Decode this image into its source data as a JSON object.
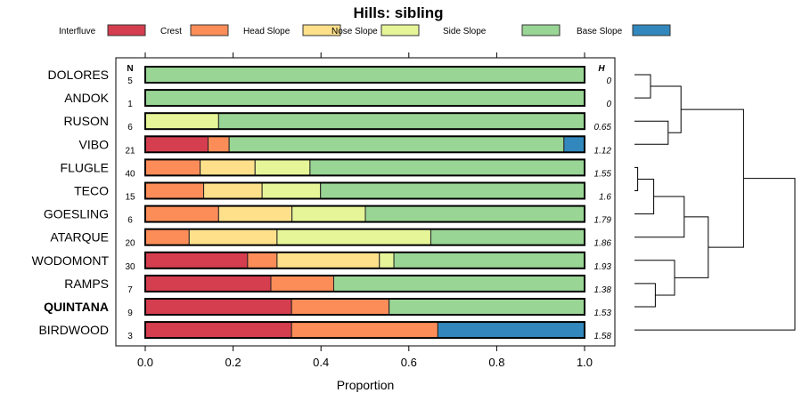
{
  "chart_data": {
    "type": "bar",
    "stacked": true,
    "orientation": "horizontal",
    "title": "Hills: sibling",
    "xlabel": "Proportion",
    "xlim": [
      0,
      1
    ],
    "xticks": [
      "0.0",
      "0.2",
      "0.4",
      "0.6",
      "0.8",
      "1.0"
    ],
    "xtick_values": [
      0,
      0.2,
      0.4,
      0.6,
      0.8,
      1.0
    ],
    "n_header": "N",
    "h_header": "H",
    "legend_position": "top",
    "series": [
      {
        "name": "Interfluve",
        "color": "#D53E4F"
      },
      {
        "name": "Crest",
        "color": "#FC8D59"
      },
      {
        "name": "Head Slope",
        "color": "#FEE08B"
      },
      {
        "name": "Nose Slope",
        "color": "#E6F598"
      },
      {
        "name": "Side Slope",
        "color": "#99D594"
      },
      {
        "name": "Base Slope",
        "color": "#3288BD"
      }
    ],
    "categories": [
      "DOLORES",
      "ANDOK",
      "RUSON",
      "VIBO",
      "FLUGLE",
      "TECO",
      "GOESLING",
      "ATARQUE",
      "WODOMONT",
      "RAMPS",
      "QUINTANA",
      "BIRDWOOD"
    ],
    "highlighted": "QUINTANA",
    "N": [
      "5",
      "1",
      "6",
      "21",
      "40",
      "15",
      "6",
      "20",
      "30",
      "7",
      "9",
      "3"
    ],
    "H": [
      "0",
      "0",
      "0.65",
      "1.12",
      "1.55",
      "1.6",
      "1.79",
      "1.86",
      "1.93",
      "1.38",
      "1.53",
      "1.58"
    ],
    "proportions": [
      [
        0,
        0,
        0,
        0,
        1,
        0
      ],
      [
        0,
        0,
        0,
        0,
        1,
        0
      ],
      [
        0,
        0,
        0,
        0.167,
        0.833,
        0
      ],
      [
        0.143,
        0.048,
        0,
        0,
        0.762,
        0.048
      ],
      [
        0,
        0.125,
        0.125,
        0.125,
        0.625,
        0
      ],
      [
        0,
        0.133,
        0.133,
        0.133,
        0.6,
        0
      ],
      [
        0,
        0.167,
        0.167,
        0.167,
        0.5,
        0
      ],
      [
        0,
        0.1,
        0.2,
        0.35,
        0.35,
        0
      ],
      [
        0.233,
        0.067,
        0.233,
        0.033,
        0.433,
        0
      ],
      [
        0.286,
        0.143,
        0,
        0,
        0.571,
        0
      ],
      [
        0.333,
        0.222,
        0,
        0,
        0.444,
        0
      ],
      [
        0.333,
        0.333,
        0,
        0,
        0,
        0.333
      ]
    ],
    "dendrogram": {
      "merges": [
        [
          0,
          1,
          0.1
        ],
        [
          2,
          3,
          0.21
        ],
        [
          12,
          13,
          0.29
        ],
        [
          4,
          5,
          0.02
        ],
        [
          15,
          6,
          0.12
        ],
        [
          16,
          7,
          0.31
        ],
        [
          9,
          10,
          0.13
        ],
        [
          18,
          8,
          0.25
        ],
        [
          17,
          19,
          0.46
        ],
        [
          14,
          20,
          0.68
        ],
        [
          21,
          11,
          1.0
        ]
      ]
    }
  }
}
